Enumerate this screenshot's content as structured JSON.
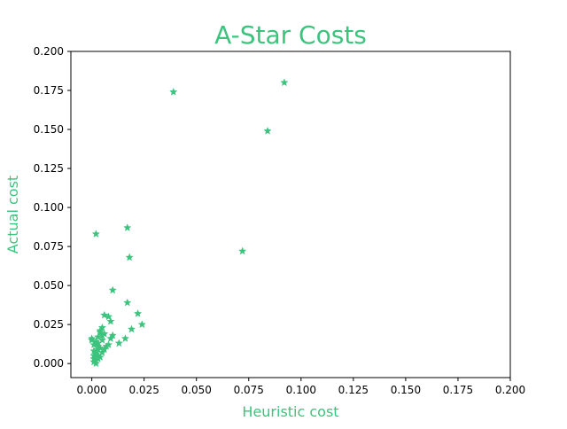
{
  "chart_data": {
    "type": "scatter",
    "title": "A-Star Costs",
    "xlabel": "Heuristic cost",
    "ylabel": "Actual cost",
    "xlim": [
      -0.01,
      0.2
    ],
    "ylim": [
      -0.009,
      0.2
    ],
    "x_ticks": [
      "0.000",
      "0.025",
      "0.050",
      "0.075",
      "0.100",
      "0.125",
      "0.150",
      "0.175",
      "0.200"
    ],
    "y_ticks": [
      "0.000",
      "0.025",
      "0.050",
      "0.075",
      "0.100",
      "0.125",
      "0.150",
      "0.175",
      "0.200"
    ],
    "marker": "star",
    "grid": false,
    "colors": {
      "accent": "#3cc37d",
      "axis": "#000000"
    },
    "series": [
      {
        "x": [
          0.092,
          0.039,
          0.084,
          0.072,
          0.002,
          0.017,
          0.018,
          0.01,
          0.017,
          0.006,
          0.008,
          0.009,
          0.022,
          0.024,
          0.019,
          0.016,
          0.013,
          0.009,
          0.01,
          0.005,
          0.004,
          0.003,
          0.002,
          0.001,
          0.0,
          0.001,
          0.002,
          0.003,
          0.004,
          0.005,
          0.006,
          0.007,
          0.008,
          0.002,
          0.003,
          0.001,
          0.002,
          0.004,
          0.003,
          0.005,
          0.006,
          0.001,
          0.002,
          0.003,
          0.001,
          0.0,
          0.004,
          0.005,
          0.003,
          0.002
        ],
        "y": [
          0.18,
          0.174,
          0.149,
          0.072,
          0.083,
          0.087,
          0.068,
          0.047,
          0.039,
          0.031,
          0.03,
          0.027,
          0.032,
          0.025,
          0.022,
          0.016,
          0.013,
          0.016,
          0.018,
          0.023,
          0.02,
          0.017,
          0.014,
          0.012,
          0.015,
          0.008,
          0.006,
          0.005,
          0.004,
          0.007,
          0.009,
          0.011,
          0.012,
          0.002,
          0.003,
          0.001,
          0.0,
          0.01,
          0.013,
          0.015,
          0.019,
          0.005,
          0.007,
          0.009,
          0.003,
          0.016,
          0.021,
          0.018,
          0.011,
          0.004
        ]
      }
    ]
  }
}
